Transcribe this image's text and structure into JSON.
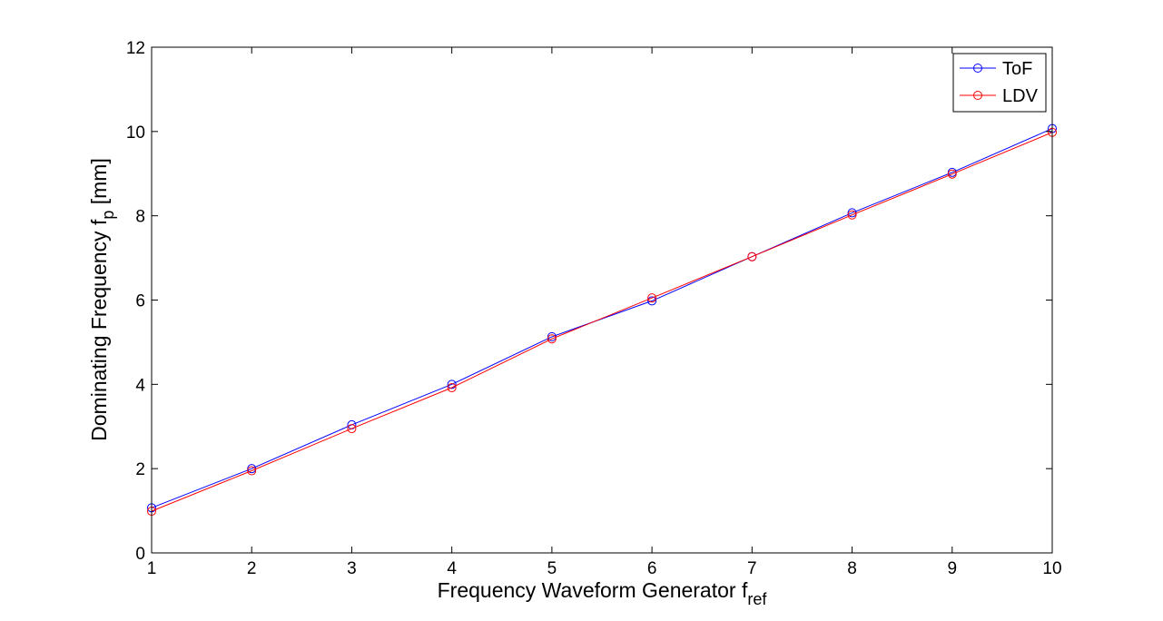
{
  "chart_data": {
    "type": "line",
    "x": [
      1,
      2,
      3,
      4,
      5,
      6,
      7,
      8,
      9,
      10
    ],
    "xlim": [
      1,
      10
    ],
    "ylim": [
      0,
      12
    ],
    "xticks": [
      "1",
      "2",
      "3",
      "4",
      "5",
      "6",
      "7",
      "8",
      "9",
      "10"
    ],
    "yticks": [
      "0",
      "2",
      "4",
      "6",
      "8",
      "10",
      "12"
    ],
    "xticks_values": [
      1,
      2,
      3,
      4,
      5,
      6,
      7,
      8,
      9,
      10
    ],
    "yticks_values": [
      0,
      2,
      4,
      6,
      8,
      10,
      12
    ],
    "xlabel": "Frequency Waveform Generator f",
    "xlabel_sub": "ref",
    "ylabel": "Dominating Frequency f",
    "ylabel_sub": "p",
    "ylabel_suffix": " [mm]",
    "grid": false,
    "legend_position": "top-right",
    "marker": "circle",
    "series": [
      {
        "name": "ToF",
        "color": "#0000ff",
        "values": [
          1.07,
          2.0,
          3.04,
          4.0,
          5.13,
          5.98,
          7.03,
          8.07,
          9.03,
          10.07
        ]
      },
      {
        "name": "LDV",
        "color": "#ff0000",
        "values": [
          0.99,
          1.95,
          2.95,
          3.92,
          5.08,
          6.05,
          7.03,
          8.02,
          8.99,
          9.98
        ]
      }
    ]
  }
}
